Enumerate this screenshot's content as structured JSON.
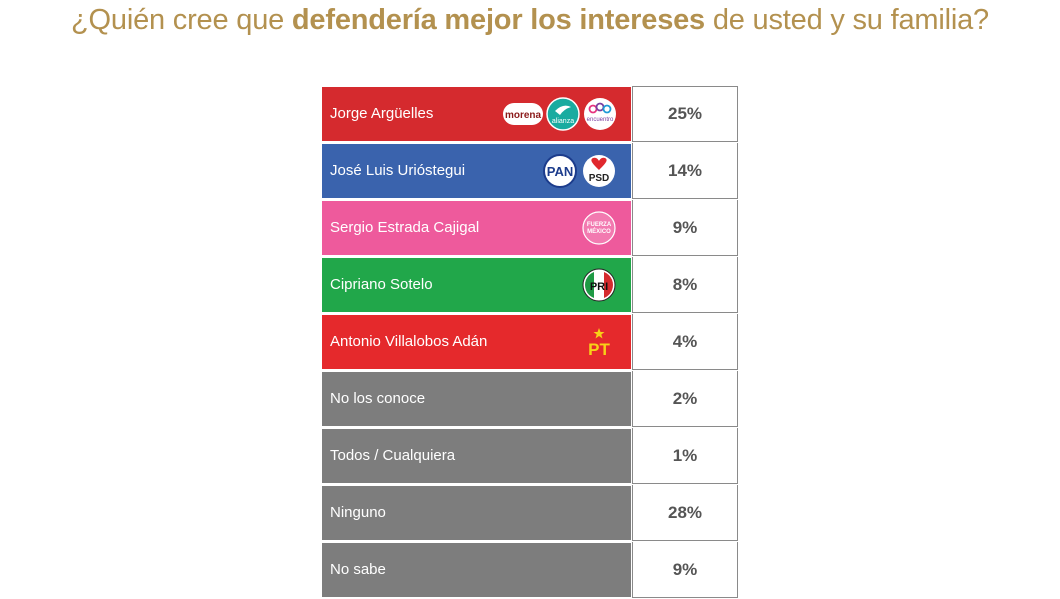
{
  "title": {
    "part1": "¿Quién cree que ",
    "bold": "defendería mejor los intereses",
    "part2": " de usted y su familia?"
  },
  "colors": {
    "title": "#b3914f",
    "rows": [
      "#d52a2e",
      "#3a63ad",
      "#ee5a9c",
      "#21a74a",
      "#e5292c",
      "#7d7d7d",
      "#7d7d7d",
      "#7d7d7d",
      "#7d7d7d"
    ]
  },
  "logo_texts": {
    "morena": "morena",
    "alianza": "alianza",
    "encuentro": "encuentro",
    "pan": "PAN",
    "psd": "PSD",
    "fuerza": "FUERZA",
    "mexico": "MÉXICO",
    "pri": "PRI",
    "pt": "PT"
  },
  "chart_data": {
    "type": "table",
    "title": "¿Quién cree que defendería mejor los intereses de usted y su familia?",
    "rows": [
      {
        "label": "Jorge Argüelles",
        "value": "25%",
        "parties": [
          "morena",
          "alianza",
          "encuentro"
        ]
      },
      {
        "label": "José Luis Urióstegui",
        "value": "14%",
        "parties": [
          "PAN",
          "PSD"
        ]
      },
      {
        "label": "Sergio Estrada Cajigal",
        "value": "9%",
        "parties": [
          "FUERZA MÉXICO"
        ]
      },
      {
        "label": "Cipriano Sotelo",
        "value": "8%",
        "parties": [
          "PRI"
        ]
      },
      {
        "label": "Antonio Villalobos Adán",
        "value": "4%",
        "parties": [
          "PT"
        ]
      },
      {
        "label": "No los conoce",
        "value": "2%",
        "parties": []
      },
      {
        "label": "Todos / Cualquiera",
        "value": "1%",
        "parties": []
      },
      {
        "label": "Ninguno",
        "value": "28%",
        "parties": []
      },
      {
        "label": "No sabe",
        "value": "9%",
        "parties": []
      }
    ]
  }
}
